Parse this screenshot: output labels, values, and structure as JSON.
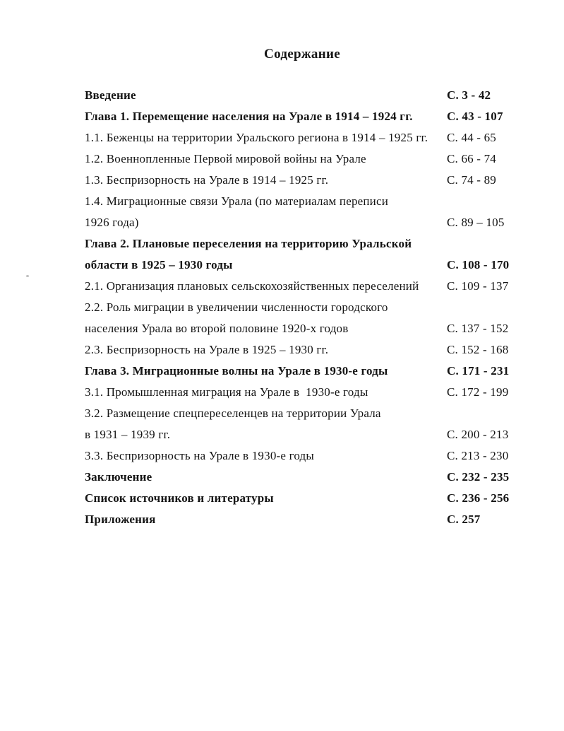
{
  "page": {
    "title": "Содержание"
  },
  "toc": {
    "rows": [
      {
        "text": "Введение",
        "pages": "С. 3 - 42",
        "bold": true
      },
      {
        "text": "Глава 1. Перемещение населения на Урале в 1914 – 1924 гг.",
        "pages": "С. 43 - 107",
        "bold": true
      },
      {
        "text": "1.1. Беженцы на территории Уральского региона в 1914 – 1925 гг.",
        "pages": "С. 44 - 65",
        "bold": false
      },
      {
        "text": "1.2. Военнопленные Первой мировой войны на Урале",
        "pages": "С. 66 - 74",
        "bold": false
      },
      {
        "text": "1.3. Беспризорность на Урале в 1914 – 1925 гг.",
        "pages": "С. 74 - 89",
        "bold": false
      },
      {
        "text": "1.4. Миграционные связи Урала (по материалам переписи",
        "pages": "",
        "bold": false
      },
      {
        "text": "1926 года)",
        "pages": "С. 89 – 105",
        "bold": false
      },
      {
        "text": "Глава 2. Плановые переселения на территорию Уральской",
        "pages": "",
        "bold": true
      },
      {
        "text": "области в 1925 – 1930 годы",
        "pages": "С. 108 - 170",
        "bold": true
      },
      {
        "text": "2.1. Организация плановых сельскохозяйственных переселений",
        "pages": "С. 109 - 137",
        "bold": false
      },
      {
        "text": "2.2. Роль миграции в увеличении численности городского",
        "pages": "",
        "bold": false
      },
      {
        "text": "населения Урала во второй половине 1920-х годов",
        "pages": "С. 137 - 152",
        "bold": false
      },
      {
        "text": "2.3. Беспризорность на Урале в 1925 – 1930 гг.",
        "pages": "С. 152 - 168",
        "bold": false
      },
      {
        "text": "Глава 3. Миграционные волны на Урале в 1930-е годы",
        "pages": "С. 171 - 231",
        "bold": true
      },
      {
        "text": "3.1. Промышленная миграция на Урале в  1930-е годы",
        "pages": "С. 172 - 199",
        "bold": false
      },
      {
        "text": "3.2. Размещение спецпереселенцев на территории Урала",
        "pages": "",
        "bold": false
      },
      {
        "text": "в 1931 – 1939 гг.",
        "pages": "С. 200 - 213",
        "bold": false
      },
      {
        "text": "3.3. Беспризорность на Урале в 1930-е годы",
        "pages": "С. 213 - 230",
        "bold": false
      },
      {
        "text": "Заключение",
        "pages": "С. 232 - 235",
        "bold": true
      },
      {
        "text": "Список источников и литературы",
        "pages": "С. 236 - 256",
        "bold": true
      },
      {
        "text": "Приложения",
        "pages": "С. 257",
        "bold": true
      }
    ]
  }
}
